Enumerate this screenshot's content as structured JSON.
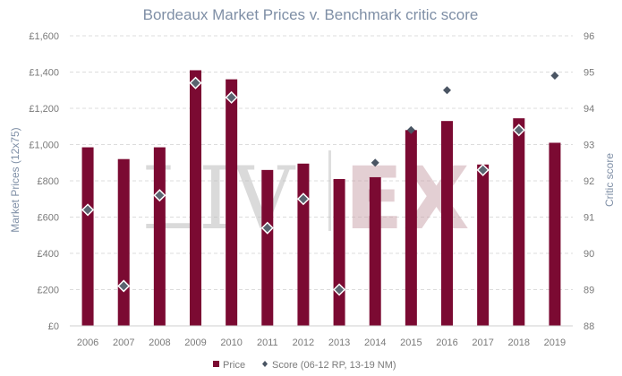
{
  "chart_data": {
    "type": "bar",
    "title": "Bordeaux Market Prices v. Benchmark critic score",
    "categories": [
      "2006",
      "2007",
      "2008",
      "2009",
      "2010",
      "2011",
      "2012",
      "2013",
      "2014",
      "2015",
      "2016",
      "2017",
      "2018",
      "2019"
    ],
    "series": [
      {
        "name": "Price",
        "type": "bar",
        "axis": "left",
        "color": "#7b0a32",
        "values": [
          985,
          920,
          985,
          1410,
          1360,
          860,
          895,
          810,
          820,
          1080,
          1130,
          890,
          1145,
          1010
        ]
      },
      {
        "name": "Score (06-12 RP, 13-19 NM)",
        "type": "scatter",
        "axis": "right",
        "marker_fill": "#4a5563",
        "values": [
          91.2,
          89.1,
          91.6,
          94.7,
          94.3,
          90.7,
          91.5,
          89.0,
          92.5,
          93.4,
          94.5,
          92.3,
          93.4,
          94.9
        ],
        "hollow_where_inside_bar": true
      }
    ],
    "ylabel": "Market Prices (12x75)",
    "y2label": "Critic score",
    "ylim": [
      0,
      1600
    ],
    "y2lim": [
      88,
      96
    ],
    "yticks": [
      "£0",
      "£200",
      "£400",
      "£600",
      "£800",
      "£1,000",
      "£1,200",
      "£1,400",
      "£1,600"
    ],
    "y2ticks": [
      "88",
      "89",
      "90",
      "91",
      "92",
      "93",
      "94",
      "95",
      "96"
    ],
    "grid": true,
    "legend_position": "bottom-center",
    "watermark": {
      "left": "LIV",
      "right": "EX",
      "logo": "Liv-ex"
    }
  }
}
